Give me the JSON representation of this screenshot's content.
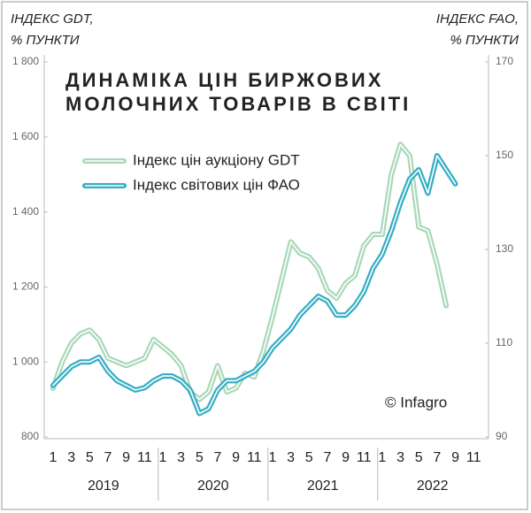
{
  "chart_data": {
    "type": "line",
    "title": [
      "ДИНАМІКА ЦІН БИРЖОВИХ",
      "МОЛОЧНИХ ТОВАРІВ В СВІТІ"
    ],
    "y_label": [
      "ІНДЕКС GDT,",
      "% ПУНКТИ"
    ],
    "y2_label": [
      "ІНДЕКС FAO,",
      "% ПУНКТИ"
    ],
    "annotation": "© Infagro",
    "categories": [
      "1",
      null,
      "3",
      null,
      "5",
      null,
      "7",
      null,
      "9",
      null,
      "11",
      null,
      "1",
      null,
      "3",
      null,
      "5",
      null,
      "7",
      null,
      "9",
      null,
      "11",
      null,
      "1",
      null,
      "3",
      null,
      "5",
      null,
      "7",
      null,
      "9",
      null,
      "11",
      null,
      "1",
      null,
      "3",
      null,
      "5",
      null,
      "7",
      null,
      "9",
      null,
      "11",
      null
    ],
    "years": [
      "2019",
      "2020",
      "2021",
      "2022"
    ],
    "series": [
      {
        "name": "Індекс цін аукціону GDT",
        "color": "#a9d8b8",
        "axis": "y",
        "values": [
          930,
          1000,
          1050,
          1075,
          1085,
          1060,
          1010,
          1000,
          990,
          1000,
          1010,
          1060,
          1040,
          1020,
          990,
          920,
          900,
          920,
          990,
          920,
          930,
          970,
          960,
          1030,
          1120,
          1220,
          1320,
          1290,
          1280,
          1250,
          1190,
          1170,
          1210,
          1230,
          1310,
          1340,
          1340,
          1500,
          1580,
          1550,
          1360,
          1350,
          1260,
          1150,
          null,
          null,
          null,
          null
        ]
      },
      {
        "name": "Індекс світових цін ФАО",
        "color": "#35adc4",
        "axis": "y2",
        "values": [
          101,
          103,
          105,
          106,
          106,
          107,
          104,
          102,
          101,
          100,
          100.5,
          102,
          103,
          103,
          102,
          100,
          95,
          96,
          100,
          102,
          102,
          103,
          104,
          106,
          109,
          111,
          113,
          116,
          118,
          120,
          119,
          116,
          116,
          118,
          121,
          126,
          129,
          134,
          140,
          145,
          147,
          142,
          150,
          147,
          144,
          null,
          null,
          null
        ]
      }
    ],
    "ylim": [
      800,
      1800
    ],
    "yticks": [
      800,
      {
        "value": 1000,
        "label": "1 000"
      },
      {
        "value": 1200,
        "label": "1 200"
      },
      {
        "value": 1400,
        "label": "1 400"
      },
      {
        "value": 1600,
        "label": "1 600"
      },
      {
        "value": 1800,
        "label": "1 800"
      }
    ],
    "y2lim": [
      90,
      170
    ],
    "y2ticks": [
      90,
      110,
      130,
      150,
      170
    ],
    "legend": "upper left"
  }
}
